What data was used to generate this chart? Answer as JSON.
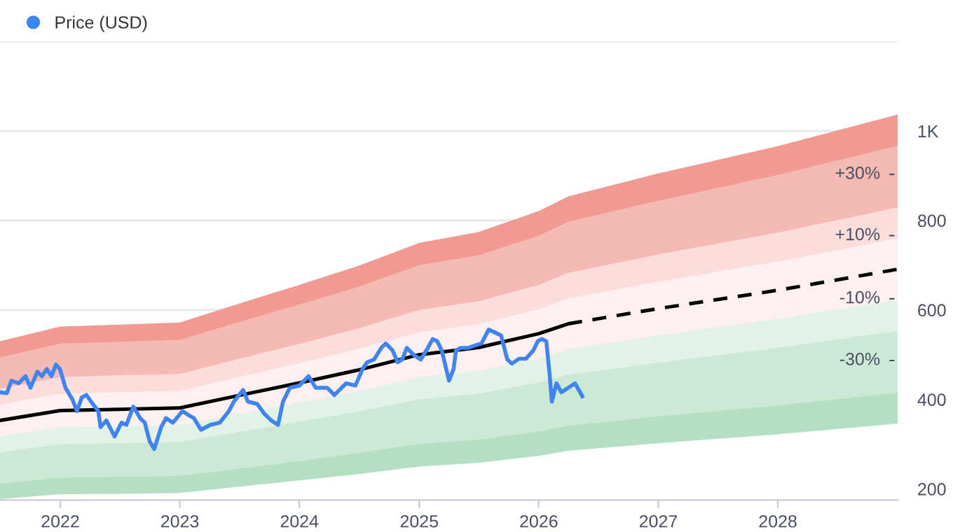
{
  "chart_data": {
    "type": "area",
    "x": [
      "2021-07-01",
      "2022-01-01",
      "2022-07-01",
      "2023-01-01",
      "2023-07-01",
      "2024-01-01",
      "2024-07-01",
      "2025-01-01",
      "2025-07-01",
      "2026-01-01",
      "2026-04-01",
      "2027-01-01",
      "2028-01-01",
      "2029-01-01"
    ],
    "series": [
      {
        "color": "#f19a91",
        "values": [
          530,
          563,
          567,
          572,
          614,
          656,
          699,
          750,
          774,
          821,
          854,
          905,
          966,
          1037
        ]
      },
      {
        "color": "#f6bab4",
        "values": [
          494,
          525,
          529,
          533,
          573,
          612,
          652,
          700,
          722,
          766,
          797,
          844,
          902,
          967
        ]
      },
      {
        "color": "#fbdedb",
        "values": [
          424,
          450,
          454,
          457,
          491,
          524,
          559,
          600,
          619,
          656,
          683,
          724,
          773,
          829
        ]
      },
      {
        "color": "#fdf0ef",
        "values": [
          388,
          413,
          416,
          419,
          450,
          481,
          513,
          550,
          568,
          602,
          626,
          663,
          708,
          760
        ]
      },
      {
        "color": "#e2f2e6",
        "values": [
          318,
          338,
          340,
          343,
          368,
          393,
          419,
          450,
          464,
          492,
          512,
          543,
          580,
          622
        ]
      },
      {
        "color": "#cce9d5",
        "values": [
          282,
          300,
          302,
          305,
          327,
          350,
          373,
          400,
          413,
          438,
          455,
          482,
          515,
          553
        ]
      },
      {
        "color": "#b5dfc2",
        "values": [
          212,
          225,
          227,
          229,
          245,
          262,
          280,
          300,
          310,
          328,
          341,
          362,
          386,
          415
        ]
      },
      {
        "color": "#ffffff",
        "values": [
          177,
          188,
          189,
          191,
          205,
          219,
          233,
          250,
          258,
          274,
          285,
          302,
          322,
          346
        ]
      },
      {
        "type": "line",
        "color": "#000000",
        "line_style": "solid",
        "x": [
          "2021-07-01",
          "2022-01-01",
          "2022-07-01",
          "2023-01-01",
          "2023-07-01",
          "2024-01-01",
          "2024-07-01",
          "2025-01-01",
          "2025-07-01",
          "2026-01-01",
          "2026-04-01"
        ],
        "values": [
          353,
          375,
          378,
          381,
          409,
          437,
          466,
          500,
          516,
          547,
          569
        ]
      },
      {
        "type": "line",
        "color": "#000000",
        "line_style": "dashed",
        "x": [
          "2026-04-01",
          "2027-01-01",
          "2028-01-01",
          "2029-01-01"
        ],
        "values": [
          569,
          603,
          644,
          691
        ]
      },
      {
        "type": "line",
        "name": "Price (USD)",
        "color": "#3f84f0",
        "line_style": "solid",
        "x": [
          "2021-07-01",
          "2021-07-22",
          "2021-08-05",
          "2021-08-27",
          "2021-09-17",
          "2021-10-02",
          "2021-10-23",
          "2021-11-06",
          "2021-11-21",
          "2021-12-05",
          "2021-12-19",
          "2021-12-31",
          "2022-01-17",
          "2022-02-07",
          "2022-02-21",
          "2022-03-08",
          "2022-03-22",
          "2022-04-05",
          "2022-04-27",
          "2022-05-04",
          "2022-05-22",
          "2022-06-16",
          "2022-07-07",
          "2022-07-22",
          "2022-08-12",
          "2022-09-02",
          "2022-09-16",
          "2022-10-01",
          "2022-10-15",
          "2022-11-05",
          "2022-11-20",
          "2022-12-11",
          "2023-01-09",
          "2023-01-30",
          "2023-02-13",
          "2023-03-07",
          "2023-04-04",
          "2023-05-03",
          "2023-05-31",
          "2023-06-15",
          "2023-07-13",
          "2023-07-28",
          "2023-08-25",
          "2023-09-15",
          "2023-10-07",
          "2023-10-28",
          "2023-11-12",
          "2023-12-03",
          "2024-01-01",
          "2024-01-29",
          "2024-02-20",
          "2024-03-26",
          "2024-04-17",
          "2024-05-23",
          "2024-06-20",
          "2024-07-12",
          "2024-07-26",
          "2024-08-16",
          "2024-09-07",
          "2024-09-21",
          "2024-10-12",
          "2024-10-27",
          "2024-11-10",
          "2024-11-24",
          "2024-12-16",
          "2025-01-06",
          "2025-01-27",
          "2025-02-11",
          "2025-02-25",
          "2025-03-11",
          "2025-04-02",
          "2025-04-16",
          "2025-04-23",
          "2025-05-07",
          "2025-05-29",
          "2025-06-26",
          "2025-07-10",
          "2025-08-01",
          "2025-08-22",
          "2025-09-08",
          "2025-09-27",
          "2025-10-11",
          "2025-11-02",
          "2025-11-23",
          "2025-12-15",
          "2025-12-29",
          "2026-01-10",
          "2026-01-24",
          "2026-02-03",
          "2026-02-10",
          "2026-02-24",
          "2026-03-11",
          "2026-04-01",
          "2026-04-22",
          "2026-05-07",
          "2026-05-14"
        ],
        "values": [
          416,
          414,
          442,
          436,
          452,
          426,
          462,
          452,
          468,
          452,
          478,
          468,
          426,
          400,
          374,
          405,
          410,
          395,
          374,
          338,
          353,
          317,
          348,
          343,
          384,
          358,
          348,
          306,
          289,
          338,
          358,
          348,
          374,
          364,
          358,
          332,
          343,
          348,
          374,
          395,
          421,
          395,
          390,
          369,
          353,
          343,
          395,
          426,
          431,
          452,
          426,
          426,
          410,
          436,
          431,
          468,
          483,
          489,
          515,
          525,
          509,
          483,
          489,
          515,
          499,
          489,
          515,
          535,
          530,
          509,
          442,
          468,
          509,
          515,
          515,
          522,
          525,
          556,
          549,
          543,
          489,
          480,
          491,
          491,
          509,
          530,
          535,
          530,
          457,
          395,
          436,
          416,
          426,
          436,
          416,
          407
        ]
      }
    ],
    "xlim": [
      "2021-07-01",
      "2029-01-01"
    ],
    "xticks": [
      {
        "value": "2022-01-01",
        "label": "2022"
      },
      {
        "value": "2023-01-01",
        "label": "2023"
      },
      {
        "value": "2024-01-01",
        "label": "2024"
      },
      {
        "value": "2025-01-01",
        "label": "2025"
      },
      {
        "value": "2026-01-01",
        "label": "2026"
      },
      {
        "value": "2027-01-01",
        "label": "2027"
      },
      {
        "value": "2028-01-01",
        "label": "2028"
      }
    ],
    "ylim": [
      175,
      1200
    ],
    "yticks": [
      200,
      400,
      600,
      800,
      {
        "value": 1000,
        "label": "1K"
      },
      {
        "value": 1200,
        "label": null
      }
    ],
    "annotations": [
      {
        "text": "+30%",
        "x": "2029-01-01",
        "y": 903
      },
      {
        "text": "+10%",
        "x": "2029-01-01",
        "y": 766
      },
      {
        "text": "-10%",
        "x": "2029-01-01",
        "y": 625
      },
      {
        "text": "-30%",
        "x": "2029-01-01",
        "y": 487
      }
    ],
    "grid": "y",
    "legend": "top left"
  }
}
